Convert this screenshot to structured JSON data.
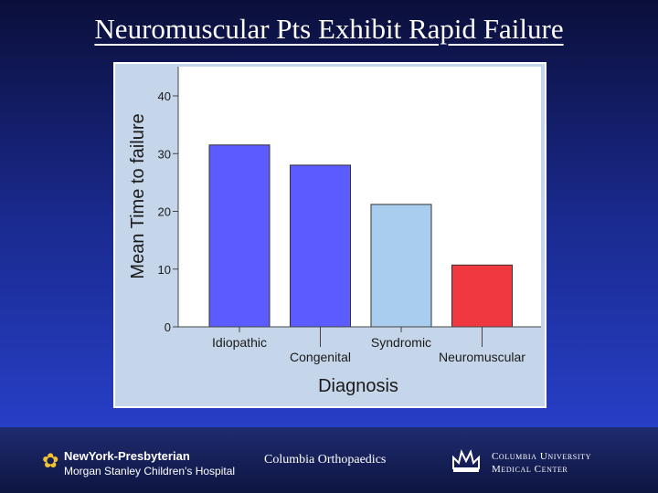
{
  "slide": {
    "title": "Neuromuscular Pts Exhibit Rapid Failure"
  },
  "chart_data": {
    "type": "bar",
    "categories": [
      "Idiopathic",
      "Congenital",
      "Syndromic",
      "Neuromuscular"
    ],
    "values": [
      31.5,
      28,
      21.2,
      10.7
    ],
    "colors": [
      "#5b5bff",
      "#5b5bff",
      "#a8cdee",
      "#f03840"
    ],
    "xlabel": "Diagnosis",
    "ylabel": "Mean Time to failure",
    "ylim": [
      0,
      40
    ],
    "yticks": [
      "0",
      "10",
      "20",
      "30",
      "40"
    ],
    "grid": false,
    "background": "#c6d6ea",
    "plot_background": "#ffffff"
  },
  "footer": {
    "nyp_name": "NewYork-Presbyterian",
    "nyp_hospital": "Morgan Stanley Children's Hospital",
    "columbia_ortho": "Columbia Orthopaedics",
    "cumc_line1": "Columbia University",
    "cumc_line2": "Medical Center",
    "icons": [
      "flower-icon",
      "crown-icon"
    ]
  }
}
